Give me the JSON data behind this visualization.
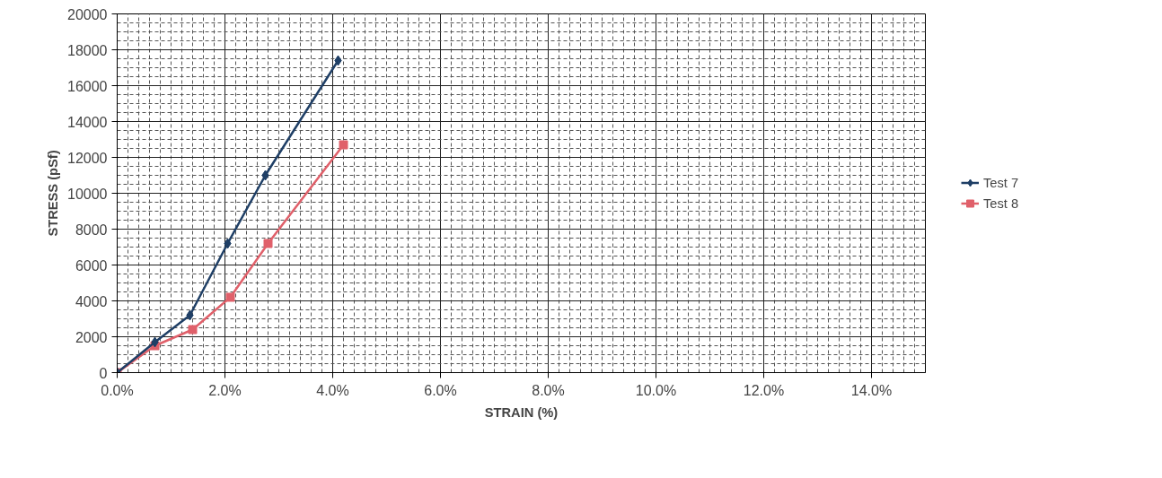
{
  "chart_data": {
    "type": "line",
    "xlabel": "STRAIN (%)",
    "ylabel": "STRESS (pSf)",
    "xlim": [
      0,
      15
    ],
    "ylim": [
      0,
      20000
    ],
    "xticks": [
      {
        "value": 0,
        "label": "0.0%"
      },
      {
        "value": 2,
        "label": "2.0%"
      },
      {
        "value": 4,
        "label": "4.0%"
      },
      {
        "value": 6,
        "label": "6.0%"
      },
      {
        "value": 8,
        "label": "8.0%"
      },
      {
        "value": 10,
        "label": "10.0%"
      },
      {
        "value": 12,
        "label": "12.0%"
      },
      {
        "value": 14,
        "label": "14.0%"
      }
    ],
    "yticks": [
      0,
      2000,
      4000,
      6000,
      8000,
      10000,
      12000,
      14000,
      16000,
      18000,
      20000
    ],
    "grid": true,
    "legend": "right",
    "series": [
      {
        "name": "Test 7",
        "color": "#1f3f66",
        "marker": "diamond",
        "x": [
          0,
          0.7,
          1.35,
          2.05,
          2.75,
          4.1
        ],
        "values": [
          0,
          1700,
          3200,
          7200,
          11000,
          17400
        ]
      },
      {
        "name": "Test 8",
        "color": "#e0606a",
        "marker": "square",
        "x": [
          0,
          0.7,
          1.4,
          2.1,
          2.8,
          4.2
        ],
        "values": [
          0,
          1500,
          2400,
          4200,
          7200,
          12700
        ]
      }
    ]
  }
}
